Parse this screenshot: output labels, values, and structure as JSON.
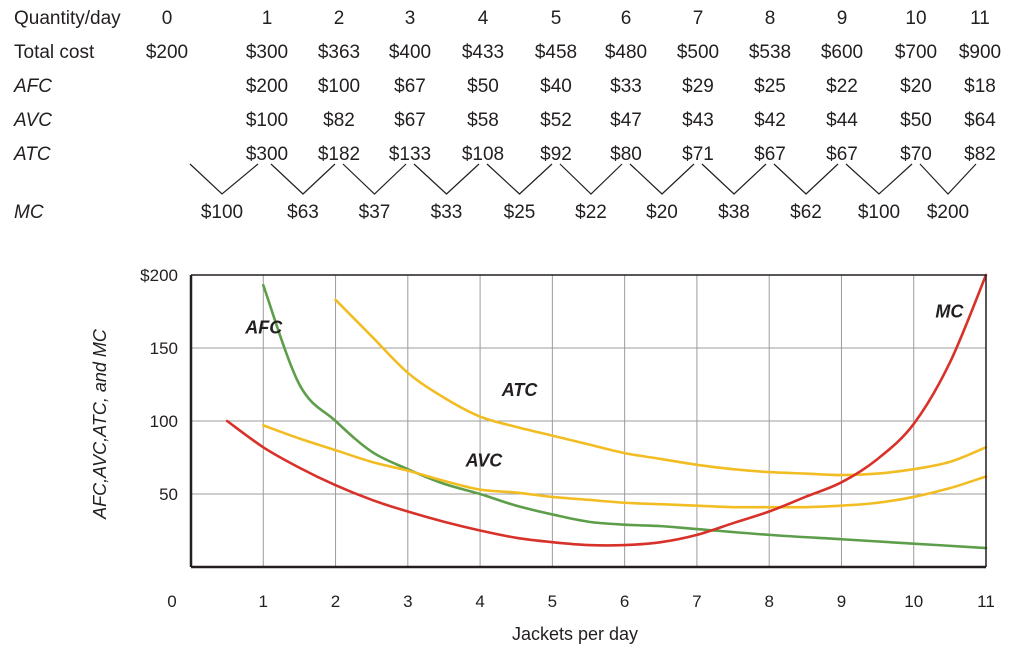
{
  "table": {
    "quantity": {
      "label": "Quantity/day",
      "values": [
        "0",
        "1",
        "2",
        "3",
        "4",
        "5",
        "6",
        "7",
        "8",
        "9",
        "10",
        "11"
      ]
    },
    "total_cost": {
      "label": "Total cost",
      "values": [
        "$200",
        "$300",
        "$363",
        "$400",
        "$433",
        "$458",
        "$480",
        "$500",
        "$538",
        "$600",
        "$700",
        "$900"
      ]
    },
    "afc": {
      "label": "AFC",
      "values": [
        "$200",
        "$100",
        "$67",
        "$50",
        "$40",
        "$33",
        "$29",
        "$25",
        "$22",
        "$20",
        "$18"
      ]
    },
    "avc": {
      "label": "AVC",
      "values": [
        "$100",
        "$82",
        "$67",
        "$58",
        "$52",
        "$47",
        "$43",
        "$42",
        "$44",
        "$50",
        "$64"
      ]
    },
    "atc": {
      "label": "ATC",
      "values": [
        "$300",
        "$182",
        "$133",
        "$108",
        "$92",
        "$80",
        "$71",
        "$67",
        "$67",
        "$70",
        "$82"
      ]
    },
    "mc": {
      "label": "MC",
      "values": [
        "$100",
        "$63",
        "$37",
        "$33",
        "$25",
        "$22",
        "$20",
        "$38",
        "$62",
        "$100",
        "$200"
      ]
    }
  },
  "chart_data": {
    "type": "line",
    "xlabel": "Jackets per day",
    "ylabel": "AFC,AVC,ATC, and MC",
    "xlim": [
      0,
      11
    ],
    "ylim": [
      0,
      200
    ],
    "x_ticks": [
      "0",
      "1",
      "2",
      "3",
      "4",
      "5",
      "6",
      "7",
      "8",
      "9",
      "10",
      "11"
    ],
    "y_ticks": [
      {
        "value": 50,
        "label": "50"
      },
      {
        "value": 100,
        "label": "100"
      },
      {
        "value": 150,
        "label": "150"
      },
      {
        "value": 200,
        "label": "$200"
      }
    ],
    "grid": true,
    "series": [
      {
        "name": "AFC",
        "color": "#5d9e4a",
        "label_at": [
          0.75,
          160
        ],
        "points": [
          [
            1,
            193
          ],
          [
            1.5,
            125
          ],
          [
            2,
            100
          ],
          [
            2.5,
            79
          ],
          [
            3,
            67
          ],
          [
            3.5,
            57
          ],
          [
            4,
            50
          ],
          [
            4.5,
            42
          ],
          [
            5,
            36
          ],
          [
            5.5,
            31
          ],
          [
            6,
            29
          ],
          [
            6.5,
            28
          ],
          [
            7,
            26
          ],
          [
            8,
            22
          ],
          [
            9,
            19
          ],
          [
            10,
            16
          ],
          [
            11,
            13
          ]
        ]
      },
      {
        "name": "AVC",
        "color": "#f2bd23",
        "label_at": [
          3.8,
          69
        ],
        "points": [
          [
            1,
            97
          ],
          [
            1.5,
            88
          ],
          [
            2,
            80
          ],
          [
            2.5,
            72
          ],
          [
            3,
            66
          ],
          [
            3.5,
            59
          ],
          [
            4,
            53
          ],
          [
            4.5,
            51
          ],
          [
            5,
            48
          ],
          [
            5.5,
            46
          ],
          [
            6,
            44
          ],
          [
            6.5,
            43
          ],
          [
            7,
            42
          ],
          [
            7.5,
            41
          ],
          [
            8,
            41
          ],
          [
            8.5,
            41
          ],
          [
            9,
            42
          ],
          [
            9.5,
            44
          ],
          [
            10,
            48
          ],
          [
            10.5,
            54
          ],
          [
            11,
            62
          ]
        ]
      },
      {
        "name": "ATC",
        "color": "#f2bd23",
        "label_at": [
          4.3,
          117
        ],
        "points": [
          [
            2,
            183
          ],
          [
            2.5,
            158
          ],
          [
            3,
            133
          ],
          [
            3.5,
            116
          ],
          [
            4,
            103
          ],
          [
            4.5,
            96
          ],
          [
            5,
            90
          ],
          [
            5.5,
            84
          ],
          [
            6,
            78
          ],
          [
            6.5,
            74
          ],
          [
            7,
            70
          ],
          [
            7.5,
            67
          ],
          [
            8,
            65
          ],
          [
            8.5,
            64
          ],
          [
            9,
            63
          ],
          [
            9.5,
            64
          ],
          [
            10,
            67
          ],
          [
            10.5,
            72
          ],
          [
            11,
            82
          ]
        ]
      },
      {
        "name": "MC",
        "color": "#d8312a",
        "label_at": [
          10.3,
          171
        ],
        "points": [
          [
            0.5,
            100
          ],
          [
            1,
            82
          ],
          [
            1.5,
            68
          ],
          [
            2,
            56
          ],
          [
            2.5,
            46
          ],
          [
            3,
            38
          ],
          [
            3.5,
            31
          ],
          [
            4,
            25
          ],
          [
            4.5,
            20
          ],
          [
            5,
            17
          ],
          [
            5.5,
            15
          ],
          [
            6,
            15
          ],
          [
            6.5,
            17
          ],
          [
            7,
            22
          ],
          [
            7.5,
            30
          ],
          [
            8,
            38
          ],
          [
            8.5,
            48
          ],
          [
            9,
            58
          ],
          [
            9.5,
            74
          ],
          [
            10,
            98
          ],
          [
            10.5,
            140
          ],
          [
            11,
            200
          ]
        ]
      }
    ]
  }
}
